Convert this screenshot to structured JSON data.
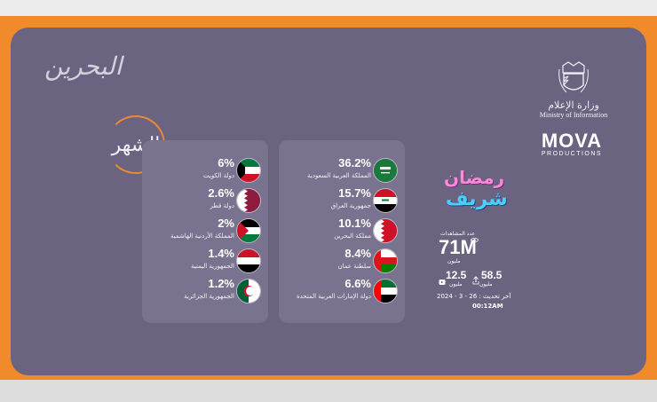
{
  "branding": {
    "left_logo": "البحرين",
    "show_logo": "الشهر",
    "ministry_ar": "وزارة الإعلام",
    "ministry_en": "Ministry of Information",
    "mova_big": "MOVA",
    "mova_small": "PRODUCTIONS",
    "ramadan_line1": "رمضان",
    "ramadan_line2": "شريف"
  },
  "countries_right": [
    {
      "pct": "36.2%",
      "name": "المملكة العربية السعودية",
      "flag": "saudi-flag"
    },
    {
      "pct": "15.7%",
      "name": "جمهورية العراق",
      "flag": "iraq-flag"
    },
    {
      "pct": "10.1%",
      "name": "مملكة البحرين",
      "flag": "bahrain-flag"
    },
    {
      "pct": "8.4%",
      "name": "سلطنة عمان",
      "flag": "oman-flag"
    },
    {
      "pct": "6.6%",
      "name": "دولة الإمارات العربية المتحدة",
      "flag": "uae-flag"
    }
  ],
  "countries_left": [
    {
      "pct": "6%",
      "name": "دولة الكويت",
      "flag": "kuwait-flag"
    },
    {
      "pct": "2.6%",
      "name": "دولة قطر",
      "flag": "qatar-flag"
    },
    {
      "pct": "2%",
      "name": "المملكة الأردنية الهاشمية",
      "flag": "jordan-flag"
    },
    {
      "pct": "1.4%",
      "name": "الجمهورية اليمنية",
      "flag": "yemen-flag"
    },
    {
      "pct": "1.2%",
      "name": "الجمهورية الجزائرية",
      "flag": "algeria-flag"
    }
  ],
  "stats": {
    "views_label": "عدد المشاهدات",
    "views_value": "71M",
    "views_unit": "مليون",
    "metric_a_value": "58.5",
    "metric_a_unit": "مليون",
    "metric_b_value": "12.5",
    "metric_b_unit": "مليون",
    "updated": "آخر تحديث : 26 - 3 - 2024",
    "updated_time": "00:12AM"
  }
}
